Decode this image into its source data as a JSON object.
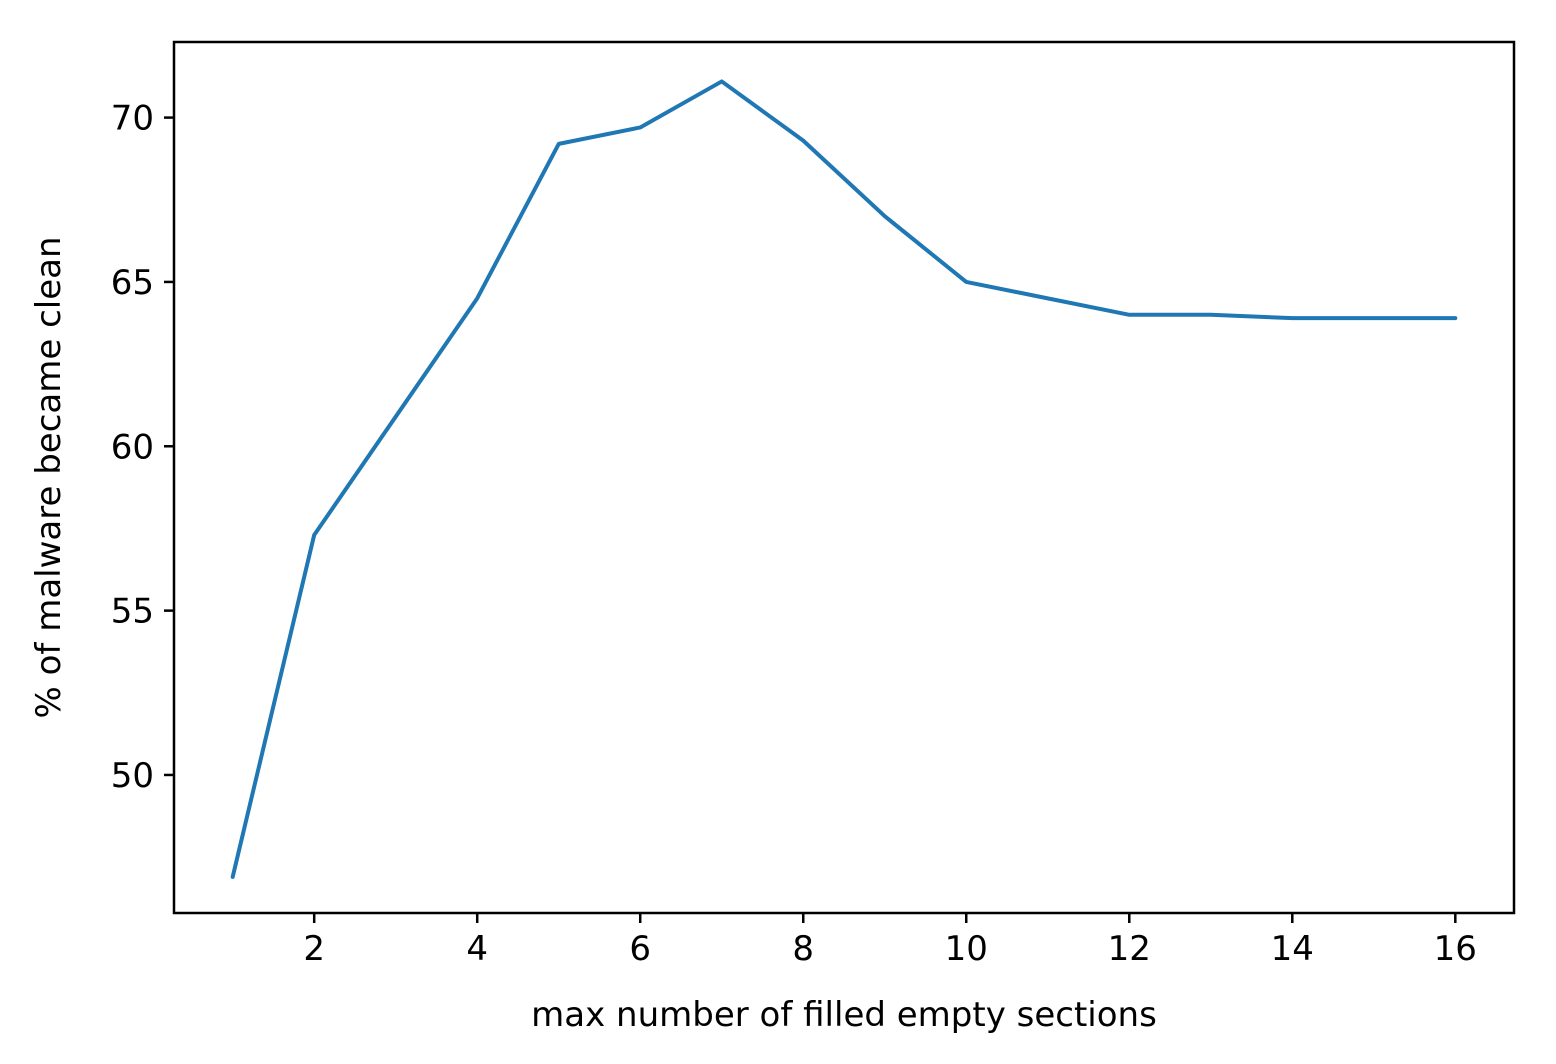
{
  "chart_data": {
    "type": "line",
    "title": "",
    "xlabel": "max number of filled empty sections",
    "ylabel": "% of malware became clean",
    "xlim": [
      0.28,
      16.72
    ],
    "ylim": [
      45.8,
      72.3
    ],
    "xticks": [
      2,
      4,
      6,
      8,
      10,
      12,
      14,
      16
    ],
    "yticks": [
      50,
      55,
      60,
      65,
      70
    ],
    "grid": false,
    "legend": "none",
    "series": [
      {
        "color": "#1f77b4",
        "x": [
          1,
          2,
          3,
          4,
          5,
          6,
          7,
          8,
          9,
          10,
          11,
          12,
          13,
          14,
          15,
          16
        ],
        "y": [
          46.9,
          57.3,
          60.9,
          64.5,
          69.2,
          69.7,
          71.1,
          69.3,
          67.0,
          65.0,
          64.5,
          64.0,
          64.0,
          63.9,
          63.9,
          63.9
        ]
      }
    ]
  }
}
